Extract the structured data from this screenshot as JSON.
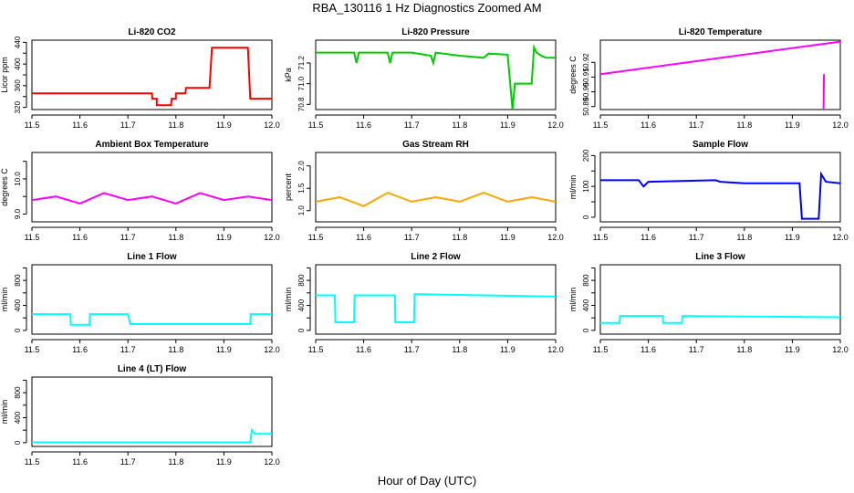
{
  "figure": {
    "title": "RBA_130116  1 Hz Diagnostics Zoomed AM",
    "xlabel": "Hour of Day (UTC)"
  },
  "chart_data": [
    {
      "type": "line",
      "title": "Li-820 CO2",
      "ylabel": "Licor ppm",
      "color": "#ff0000",
      "xlim": [
        11.5,
        12.0
      ],
      "ylim": [
        316,
        444
      ],
      "xticks": [
        11.5,
        11.6,
        11.7,
        11.8,
        11.9,
        12.0
      ],
      "xtick_labels": [
        "11.5",
        "11.6",
        "11.7",
        "11.8",
        "11.9",
        "12.0"
      ],
      "yticks": [
        320,
        340,
        360,
        380,
        400,
        420,
        440
      ],
      "ytick_labels": [
        "320",
        "",
        "360",
        "",
        "400",
        "",
        "440"
      ],
      "series": [
        {
          "x": [
            11.5,
            11.75,
            11.751,
            11.76,
            11.76,
            11.79,
            11.791,
            11.8,
            11.8,
            11.82,
            11.821,
            11.83,
            11.83,
            11.87,
            11.875,
            11.95,
            11.955,
            11.965,
            11.965,
            12.0
          ],
          "y": [
            346,
            346,
            336,
            336,
            324,
            324,
            336,
            336,
            346,
            346,
            356,
            356,
            356,
            356,
            430,
            430,
            336,
            336,
            336,
            336
          ]
        }
      ]
    },
    {
      "type": "line",
      "title": "Li-820 Pressure",
      "ylabel": "kPa",
      "color": "#00cc00",
      "xlim": [
        11.5,
        12.0
      ],
      "ylim": [
        70.75,
        71.42
      ],
      "xticks": [
        11.5,
        11.6,
        11.7,
        11.8,
        11.9,
        12.0
      ],
      "xtick_labels": [
        "11.5",
        "11.6",
        "11.7",
        "11.8",
        "11.9",
        "12.0"
      ],
      "yticks": [
        70.8,
        71.0,
        71.2
      ],
      "ytick_labels": [
        "70.8",
        "71.0",
        "71.2"
      ],
      "series": [
        {
          "x": [
            11.5,
            11.58,
            11.585,
            11.59,
            11.6,
            11.65,
            11.655,
            11.66,
            11.7,
            11.74,
            11.745,
            11.75,
            11.8,
            11.85,
            11.86,
            11.9,
            11.91,
            11.915,
            11.92,
            11.95,
            11.955,
            11.96,
            11.97,
            11.98,
            12.0
          ],
          "y": [
            71.3,
            71.3,
            71.2,
            71.3,
            71.3,
            71.3,
            71.2,
            71.3,
            71.3,
            71.27,
            71.2,
            71.3,
            71.27,
            71.25,
            71.29,
            71.28,
            70.75,
            71.0,
            71.0,
            71.0,
            71.35,
            71.3,
            71.27,
            71.25,
            71.25
          ]
        }
      ]
    },
    {
      "type": "line",
      "title": "Li-820 Temperature",
      "ylabel": "degrees C",
      "color": "#ff00ff",
      "xlim": [
        11.5,
        12.0
      ],
      "ylim": [
        50.888,
        50.935
      ],
      "xticks": [
        11.5,
        11.6,
        11.7,
        11.8,
        11.9,
        12.0
      ],
      "xtick_labels": [
        "11.5",
        "11.6",
        "11.7",
        "11.8",
        "11.9",
        "12.0"
      ],
      "yticks": [
        50.89,
        50.9,
        50.91,
        50.92
      ],
      "ytick_labels": [
        "50.89",
        "50.90",
        "50.91",
        "50.92"
      ],
      "series": [
        {
          "x": [
            11.5,
            12.0
          ],
          "y": [
            50.912,
            50.934
          ]
        },
        {
          "x": [
            11.965,
            11.966
          ],
          "y": [
            50.888,
            50.912
          ]
        }
      ]
    },
    {
      "type": "line",
      "title": "Ambient Box Temperature",
      "ylabel": "degrees C",
      "color": "#ff00ff",
      "xlim": [
        11.5,
        12.0
      ],
      "ylim": [
        8.78,
        10.75
      ],
      "xticks": [
        11.5,
        11.6,
        11.7,
        11.8,
        11.9,
        12.0
      ],
      "xtick_labels": [
        "11.5",
        "11.6",
        "11.7",
        "11.8",
        "11.9",
        "12.0"
      ],
      "yticks": [
        9.0,
        9.5,
        10.0,
        10.5
      ],
      "ytick_labels": [
        "9.0",
        "",
        "10.0",
        ""
      ],
      "series": [
        {
          "x": [
            11.5,
            11.55,
            11.6,
            11.65,
            11.7,
            11.75,
            11.8,
            11.85,
            11.9,
            11.95,
            12.0
          ],
          "y": [
            9.4,
            9.5,
            9.3,
            9.6,
            9.4,
            9.5,
            9.3,
            9.6,
            9.4,
            9.5,
            9.4
          ]
        }
      ]
    },
    {
      "type": "line",
      "title": "Gas Stream RH",
      "ylabel": "percent",
      "color": "#ffa500",
      "xlim": [
        11.5,
        12.0
      ],
      "ylim": [
        0.75,
        2.3
      ],
      "xticks": [
        11.5,
        11.6,
        11.7,
        11.8,
        11.9,
        12.0
      ],
      "xtick_labels": [
        "11.5",
        "11.6",
        "11.7",
        "11.8",
        "11.9",
        "12.0"
      ],
      "yticks": [
        1.0,
        1.5,
        2.0
      ],
      "ytick_labels": [
        "1.0",
        "1.5",
        "2.0"
      ],
      "series": [
        {
          "x": [
            11.5,
            11.55,
            11.6,
            11.65,
            11.7,
            11.75,
            11.8,
            11.85,
            11.9,
            11.95,
            12.0
          ],
          "y": [
            1.2,
            1.3,
            1.1,
            1.4,
            1.2,
            1.3,
            1.2,
            1.4,
            1.2,
            1.3,
            1.2
          ]
        }
      ]
    },
    {
      "type": "line",
      "title": "Sample Flow",
      "ylabel": "ml/min",
      "color": "#0000ff",
      "xlim": [
        11.5,
        12.0
      ],
      "ylim": [
        -15,
        210
      ],
      "xticks": [
        11.5,
        11.6,
        11.7,
        11.8,
        11.9,
        12.0
      ],
      "xtick_labels": [
        "11.5",
        "11.6",
        "11.7",
        "11.8",
        "11.9",
        "12.0"
      ],
      "yticks": [
        0,
        50,
        100,
        150,
        200
      ],
      "ytick_labels": [
        "0",
        "",
        "100",
        "",
        "200"
      ],
      "series": [
        {
          "x": [
            11.5,
            11.58,
            11.59,
            11.6,
            11.74,
            11.75,
            11.8,
            11.9,
            11.915,
            11.92,
            11.955,
            11.96,
            11.97,
            12.0
          ],
          "y": [
            120,
            120,
            100,
            115,
            120,
            115,
            110,
            110,
            110,
            -5,
            -5,
            140,
            115,
            110
          ]
        }
      ]
    },
    {
      "type": "line",
      "title": "Line 1 Flow",
      "ylabel": "ml/min",
      "color": "#00ffff",
      "xlim": [
        11.5,
        12.0
      ],
      "ylim": [
        -60,
        1050
      ],
      "xticks": [
        11.5,
        11.6,
        11.7,
        11.8,
        11.9,
        12.0
      ],
      "xtick_labels": [
        "11.5",
        "11.6",
        "11.7",
        "11.8",
        "11.9",
        "12.0"
      ],
      "yticks": [
        0,
        200,
        400,
        600,
        800,
        1000
      ],
      "ytick_labels": [
        "0",
        "",
        "400",
        "",
        "800",
        ""
      ],
      "series": [
        {
          "x": [
            11.5,
            11.58,
            11.581,
            11.62,
            11.621,
            11.7,
            11.705,
            11.955,
            11.956,
            12.0
          ],
          "y": [
            260,
            260,
            90,
            90,
            260,
            260,
            100,
            100,
            260,
            260
          ]
        }
      ]
    },
    {
      "type": "line",
      "title": "Line 2 Flow",
      "ylabel": "ml/min",
      "color": "#00ffff",
      "xlim": [
        11.5,
        12.0
      ],
      "ylim": [
        -60,
        1050
      ],
      "xticks": [
        11.5,
        11.6,
        11.7,
        11.8,
        11.9,
        12.0
      ],
      "xtick_labels": [
        "11.5",
        "11.6",
        "11.7",
        "11.8",
        "11.9",
        "12.0"
      ],
      "yticks": [
        0,
        200,
        400,
        600,
        800,
        1000
      ],
      "ytick_labels": [
        "0",
        "",
        "400",
        "",
        "800",
        ""
      ],
      "series": [
        {
          "x": [
            11.5,
            11.54,
            11.541,
            11.58,
            11.581,
            11.665,
            11.666,
            11.705,
            11.706,
            12.0
          ],
          "y": [
            560,
            560,
            130,
            130,
            560,
            560,
            130,
            130,
            580,
            540
          ]
        }
      ]
    },
    {
      "type": "line",
      "title": "Line 3 Flow",
      "ylabel": "ml/min",
      "color": "#00ffff",
      "xlim": [
        11.5,
        12.0
      ],
      "ylim": [
        -60,
        1050
      ],
      "xticks": [
        11.5,
        11.6,
        11.7,
        11.8,
        11.9,
        12.0
      ],
      "xtick_labels": [
        "11.5",
        "11.6",
        "11.7",
        "11.8",
        "11.9",
        "12.0"
      ],
      "yticks": [
        0,
        200,
        400,
        600,
        800,
        1000
      ],
      "ytick_labels": [
        "0",
        "",
        "400",
        "",
        "800",
        ""
      ],
      "series": [
        {
          "x": [
            11.5,
            11.54,
            11.541,
            11.63,
            11.631,
            11.67,
            11.671,
            12.0
          ],
          "y": [
            120,
            120,
            230,
            230,
            120,
            120,
            230,
            210
          ]
        }
      ]
    },
    {
      "type": "line",
      "title": "Line 4 (LT) Flow",
      "ylabel": "ml/min",
      "color": "#00ffff",
      "xlim": [
        11.5,
        12.0
      ],
      "ylim": [
        -60,
        1050
      ],
      "xticks": [
        11.5,
        11.6,
        11.7,
        11.8,
        11.9,
        12.0
      ],
      "xtick_labels": [
        "11.5",
        "11.6",
        "11.7",
        "11.8",
        "11.9",
        "12.0"
      ],
      "yticks": [
        0,
        200,
        400,
        600,
        800,
        1000
      ],
      "ytick_labels": [
        "0",
        "",
        "400",
        "",
        "800",
        ""
      ],
      "series": [
        {
          "x": [
            11.5,
            11.955,
            11.958,
            11.965,
            12.0
          ],
          "y": [
            5,
            5,
            200,
            140,
            140
          ]
        }
      ]
    }
  ]
}
